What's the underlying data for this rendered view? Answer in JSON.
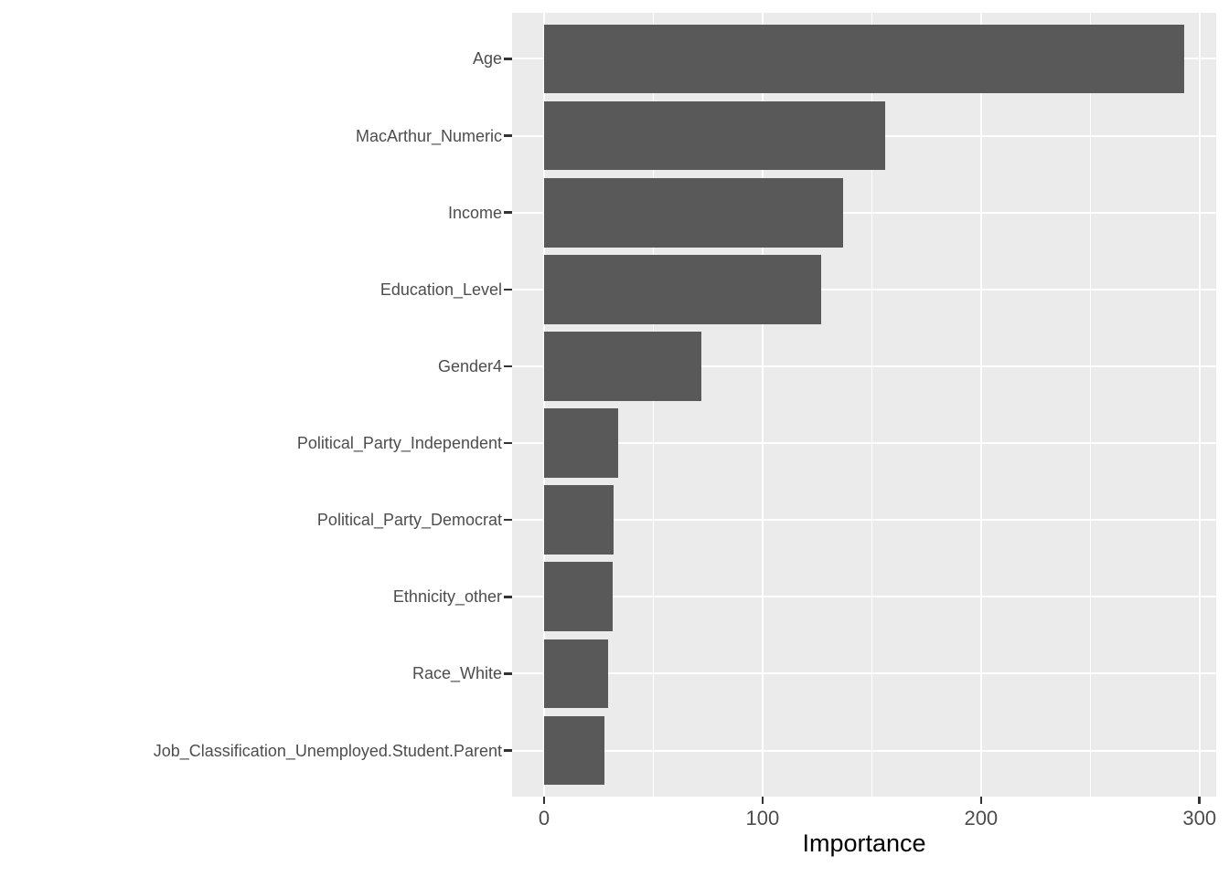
{
  "chart_data": {
    "type": "bar",
    "orientation": "horizontal",
    "title": "",
    "xlabel": "Importance",
    "ylabel": "",
    "categories": [
      "Age",
      "MacArthur_Numeric",
      "Income",
      "Education_Level",
      "Gender4",
      "Political_Party_Independent",
      "Political_Party_Democrat",
      "Ethnicity_other",
      "Race_White",
      "Job_Classification_Unemployed.Student.Parent"
    ],
    "values": [
      293,
      156,
      137,
      127,
      72,
      34,
      32,
      31.5,
      29.5,
      27.5
    ],
    "x_axis": {
      "ticks": [
        0,
        100,
        200,
        300
      ],
      "minor_ticks": [
        50,
        150,
        250
      ],
      "range": [
        -14.65,
        307.65
      ]
    },
    "bar_relative_height": 0.9,
    "grid": true,
    "legend_position": "none",
    "colors": {
      "bar_fill": "#595959",
      "panel_background": "#EBEBEB",
      "gridline": "#FFFFFF",
      "tick_mark": "#333333",
      "tick_label": "#4D4D4D",
      "axis_title": "#000000",
      "figure_background": "#FFFFFF"
    }
  }
}
